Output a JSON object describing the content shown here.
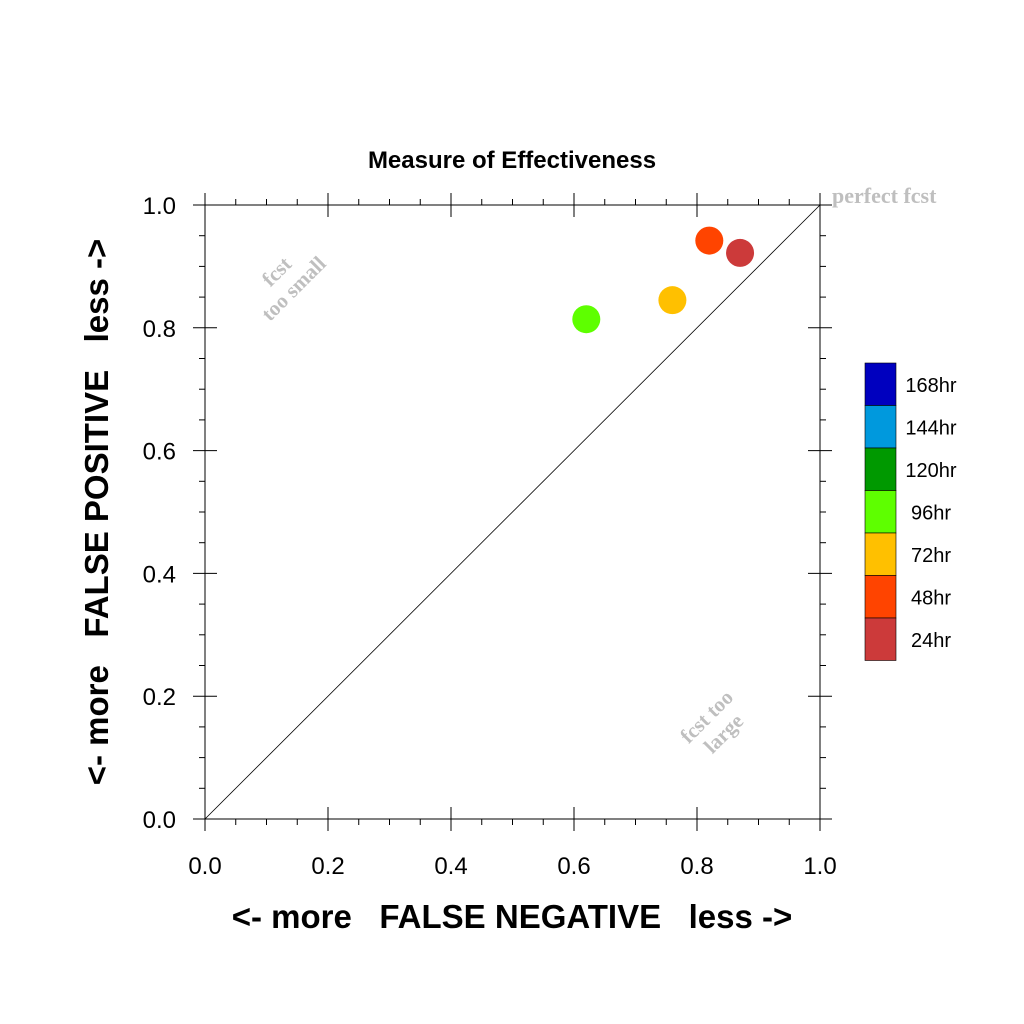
{
  "chart_data": {
    "type": "scatter",
    "title": "Measure of Effectiveness",
    "xlabel": "<- more   FALSE NEGATIVE   less ->",
    "ylabel": "<- more   FALSE POSITIVE   less ->",
    "xlim": [
      0.0,
      1.0
    ],
    "ylim": [
      0.0,
      1.0
    ],
    "x_ticks": [
      "0.0",
      "0.2",
      "0.4",
      "0.6",
      "0.8",
      "1.0"
    ],
    "y_ticks": [
      "0.0",
      "0.2",
      "0.4",
      "0.6",
      "0.8",
      "1.0"
    ],
    "grid": false,
    "diagonal_reference_line": true,
    "annotations": {
      "perfect": "perfect fcst",
      "too_small_line1": "fcst",
      "too_small_line2": "too small",
      "too_large_line1": "fcst too",
      "too_large_line2": "large"
    },
    "series": [
      {
        "name": "24hr",
        "x": 0.87,
        "y": 0.922,
        "color": "#cc3a3a"
      },
      {
        "name": "48hr",
        "x": 0.82,
        "y": 0.942,
        "color": "#ff4400"
      },
      {
        "name": "72hr",
        "x": 0.76,
        "y": 0.845,
        "color": "#ffc000"
      },
      {
        "name": "96hr",
        "x": 0.62,
        "y": 0.814,
        "color": "#5eff00"
      }
    ],
    "legend": {
      "placement": "right",
      "entries": [
        {
          "label": "168hr",
          "color": "#0000bf"
        },
        {
          "label": "144hr",
          "color": "#0099dd"
        },
        {
          "label": "120hr",
          "color": "#009900"
        },
        {
          "label": "96hr",
          "color": "#5eff00"
        },
        {
          "label": "72hr",
          "color": "#ffc000"
        },
        {
          "label": "48hr",
          "color": "#ff4400"
        },
        {
          "label": "24hr",
          "color": "#cc3a3a"
        }
      ]
    },
    "annotation_color": "#bfbfbf"
  }
}
